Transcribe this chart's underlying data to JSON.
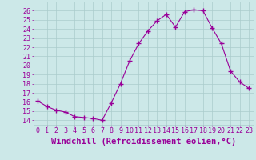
{
  "x": [
    0,
    1,
    2,
    3,
    4,
    5,
    6,
    7,
    8,
    9,
    10,
    11,
    12,
    13,
    14,
    15,
    16,
    17,
    18,
    19,
    20,
    21,
    22,
    23
  ],
  "y": [
    16.1,
    15.5,
    15.1,
    14.9,
    14.4,
    14.3,
    14.2,
    14.0,
    15.9,
    18.0,
    20.5,
    22.4,
    23.8,
    24.9,
    25.6,
    24.2,
    25.9,
    26.1,
    26.0,
    24.1,
    22.4,
    19.4,
    18.2,
    17.5
  ],
  "line_color": "#990099",
  "marker": "+",
  "marker_size": 4,
  "bg_color": "#cce8e8",
  "grid_color": "#aacccc",
  "xlabel": "Windchill (Refroidissement éolien,°C)",
  "xlabel_color": "#990099",
  "ylim": [
    13.5,
    27
  ],
  "xlim": [
    -0.5,
    23.5
  ],
  "yticks": [
    14,
    15,
    16,
    17,
    18,
    19,
    20,
    21,
    22,
    23,
    24,
    25,
    26
  ],
  "xticks": [
    0,
    1,
    2,
    3,
    4,
    5,
    6,
    7,
    8,
    9,
    10,
    11,
    12,
    13,
    14,
    15,
    16,
    17,
    18,
    19,
    20,
    21,
    22,
    23
  ],
  "tick_color": "#990099",
  "tick_fontsize": 6,
  "xlabel_fontsize": 7.5
}
